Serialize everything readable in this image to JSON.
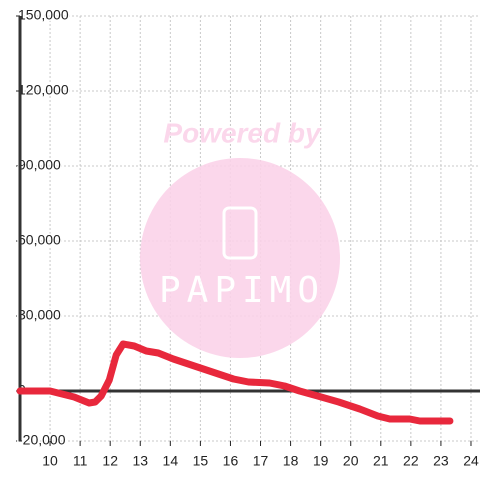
{
  "chart_data": {
    "type": "line",
    "x": [
      9,
      10,
      10.8,
      11.3,
      11.5,
      11.7,
      11.97,
      12.2,
      12.43,
      12.8,
      13.2,
      13.6,
      14.1,
      14.6,
      15.1,
      15.6,
      16.1,
      16.6,
      17.3,
      17.8,
      18.3,
      18.9,
      19.6,
      20.3,
      20.9,
      21.3,
      21.96,
      22.3,
      23.3
    ],
    "series": [
      {
        "color": "#e8283c",
        "values": [
          0,
          0,
          -2400,
          -4800,
          -4400,
          -2000,
          4400,
          14400,
          18800,
          18000,
          16000,
          15200,
          12800,
          10800,
          8800,
          6800,
          4800,
          3600,
          3200,
          2000,
          0,
          -2000,
          -4400,
          -7200,
          -10000,
          -11200,
          -11200,
          -12000,
          -12000
        ]
      }
    ],
    "xlim": [
      9,
      24.3
    ],
    "ylim": [
      -20000,
      150000
    ],
    "xticks": [
      10,
      11,
      12,
      13,
      14,
      15,
      16,
      17,
      18,
      19,
      20,
      21,
      22,
      23,
      24
    ],
    "yticks": [
      {
        "value": -20000,
        "label": "-20,000"
      },
      0,
      {
        "value": 30000,
        "label": "30,000"
      },
      {
        "value": 60000,
        "label": "60,000"
      },
      {
        "value": 90000,
        "label": "90,000"
      },
      {
        "value": 120000,
        "label": "120,000"
      },
      {
        "value": 150000,
        "label": "150,000"
      }
    ],
    "grid": true,
    "watermark": {
      "line1": "Powered by",
      "line2": "PAPIMO"
    }
  }
}
